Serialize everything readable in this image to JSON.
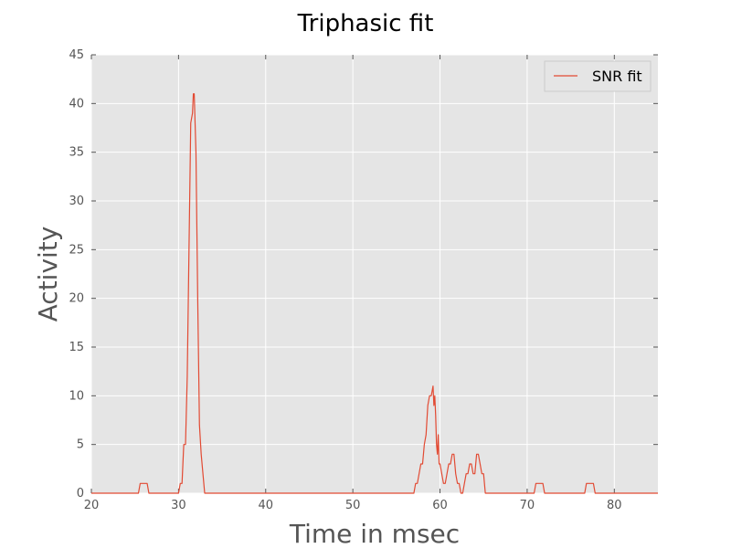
{
  "chart_data": {
    "type": "line",
    "title": "Triphasic fit",
    "xlabel": "Time in msec",
    "ylabel": "Activity",
    "xlim": [
      20,
      85
    ],
    "ylim": [
      0,
      45
    ],
    "xticks": [
      "20",
      "30",
      "40",
      "50",
      "60",
      "70",
      "80"
    ],
    "yticks": [
      "0",
      "5",
      "10",
      "15",
      "20",
      "25",
      "30",
      "35",
      "40",
      "45"
    ],
    "grid": true,
    "legend_position": "top-right",
    "background_color": "#e5e5e5",
    "grid_color": "#ffffff",
    "series": [
      {
        "name": "SNR fit",
        "color": "#e24a33",
        "x": [
          20,
          25.4,
          25.6,
          26.4,
          26.6,
          30.0,
          30.2,
          30.4,
          30.6,
          30.8,
          31.0,
          31.2,
          31.4,
          31.6,
          31.7,
          31.8,
          32.0,
          32.2,
          32.4,
          32.6,
          32.8,
          33.0,
          33.2,
          33.4,
          57.0,
          57.2,
          57.4,
          57.6,
          57.8,
          58.0,
          58.2,
          58.4,
          58.6,
          58.8,
          59.0,
          59.2,
          59.3,
          59.4,
          59.5,
          59.6,
          59.7,
          59.8,
          59.9,
          60.0,
          60.2,
          60.4,
          60.6,
          60.8,
          61.0,
          61.2,
          61.4,
          61.6,
          61.8,
          62.0,
          62.2,
          62.4,
          62.6,
          62.8,
          63.0,
          63.2,
          63.4,
          63.6,
          63.8,
          64.0,
          64.2,
          64.4,
          64.6,
          64.8,
          65.0,
          65.2,
          65.4,
          65.6,
          70.8,
          71.0,
          71.8,
          72.0,
          76.6,
          76.8,
          77.6,
          77.8,
          85
        ],
        "y": [
          0,
          0,
          1,
          1,
          0,
          0,
          1,
          1,
          5,
          5,
          12,
          25,
          38,
          39,
          41,
          41,
          35,
          20,
          7,
          4,
          2,
          0,
          0,
          0,
          0,
          1,
          1,
          2,
          3,
          3,
          5,
          6,
          9,
          10,
          10,
          11,
          9,
          10,
          8,
          5,
          4,
          6,
          3,
          3,
          2,
          1,
          1,
          2,
          3,
          3,
          4,
          4,
          2,
          1,
          1,
          0,
          0,
          1,
          2,
          2,
          3,
          3,
          2,
          2,
          4,
          4,
          3,
          2,
          2,
          0,
          0,
          0,
          0,
          1,
          1,
          0,
          0,
          1,
          1,
          0,
          0
        ]
      }
    ]
  }
}
